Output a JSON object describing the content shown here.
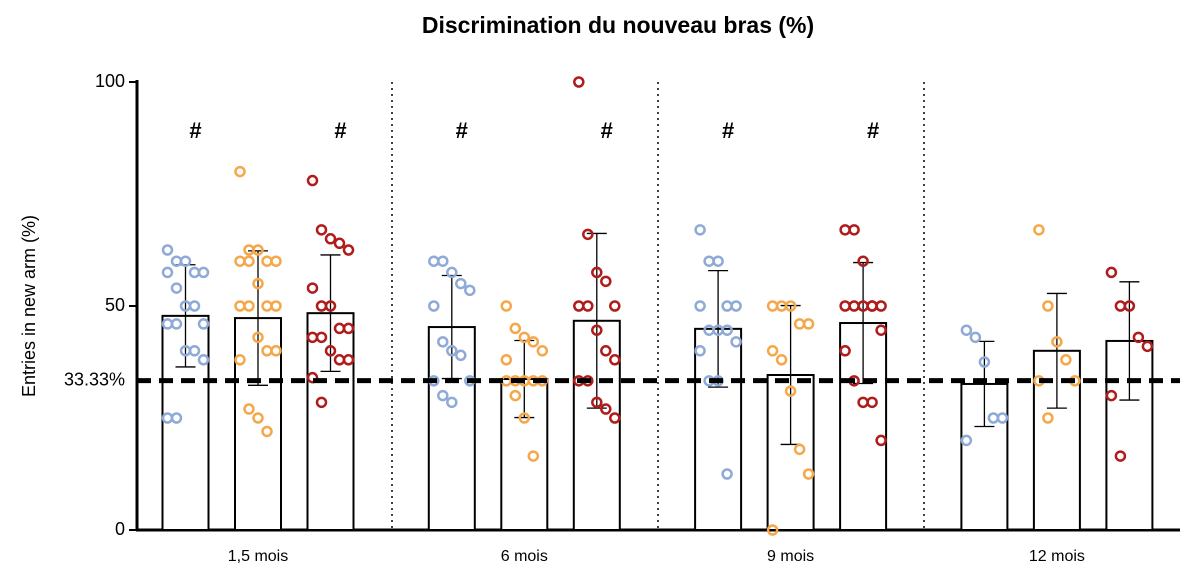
{
  "chart_data": {
    "type": "bar",
    "title": "Discrimination du nouveau bras (%)",
    "y_label": "Entries in new arm (%)",
    "categories": [
      "1,5 mois",
      "6 mois",
      "9 mois",
      "12 mois"
    ],
    "ylim": [
      0,
      100
    ],
    "yticks": [
      0,
      50,
      100
    ],
    "reference": {
      "value": 33.33,
      "label": "33.33%"
    },
    "series": [
      {
        "color": "#8eaad6",
        "values": [
          47.8,
          45.3,
          44.9,
          32.6
        ],
        "errors": [
          11.4,
          11.5,
          13,
          9.5
        ],
        "annotations": [
          "#",
          "#",
          "#",
          null
        ],
        "points": [
          [
            62.5,
            60,
            60,
            57.5,
            57.5,
            57.5,
            54,
            50,
            50,
            46,
            46,
            46,
            40,
            40,
            38,
            25,
            25
          ],
          [
            60,
            60,
            57.5,
            55,
            53.5,
            50,
            42,
            40,
            39,
            33.3,
            33.3,
            30,
            28.5
          ],
          [
            67,
            60,
            60,
            50,
            50,
            50,
            44.6,
            44.6,
            44.6,
            42,
            40,
            33.3,
            33.3,
            12.5
          ],
          [
            44.6,
            43,
            37.5,
            25,
            25,
            20
          ]
        ]
      },
      {
        "color": "#f5a84a",
        "values": [
          47.3,
          33.7,
          34.6,
          40
        ],
        "errors": [
          15,
          8.6,
          15.5,
          12.8
        ],
        "annotations": [
          null,
          null,
          null,
          null
        ],
        "points": [
          [
            80,
            62.5,
            62.5,
            60,
            60,
            60,
            60,
            55,
            50,
            50,
            50,
            50,
            43,
            40,
            40,
            38,
            27,
            25,
            22
          ],
          [
            50,
            45,
            43,
            42,
            40,
            38,
            33.3,
            33.3,
            33.3,
            33.3,
            33.3,
            30,
            25,
            16.5
          ],
          [
            50,
            50,
            50,
            46,
            46,
            40,
            38,
            31,
            18,
            12.5,
            0
          ],
          [
            67,
            50,
            42,
            38,
            33.3,
            33.3,
            25
          ]
        ]
      },
      {
        "color": "#b01c1c",
        "values": [
          48.4,
          46.7,
          46.2,
          42.2
        ],
        "errors": [
          13,
          19.5,
          13.5,
          13.2
        ],
        "annotations": [
          "#",
          "#",
          "#",
          null
        ],
        "points": [
          [
            78,
            67,
            65,
            64,
            62.5,
            54,
            50,
            50,
            45,
            45,
            43,
            43,
            40,
            38,
            38,
            34,
            28.5
          ],
          [
            100,
            66,
            57.5,
            55.5,
            50,
            50,
            50,
            44.6,
            40,
            38,
            33.3,
            33.3,
            28.5,
            27,
            25
          ],
          [
            67,
            67,
            60,
            50,
            50,
            50,
            50,
            50,
            50,
            44.6,
            40,
            33.3,
            28.5,
            28.5,
            20
          ],
          [
            57.5,
            50,
            50,
            43,
            41,
            30,
            16.5
          ]
        ]
      }
    ]
  }
}
